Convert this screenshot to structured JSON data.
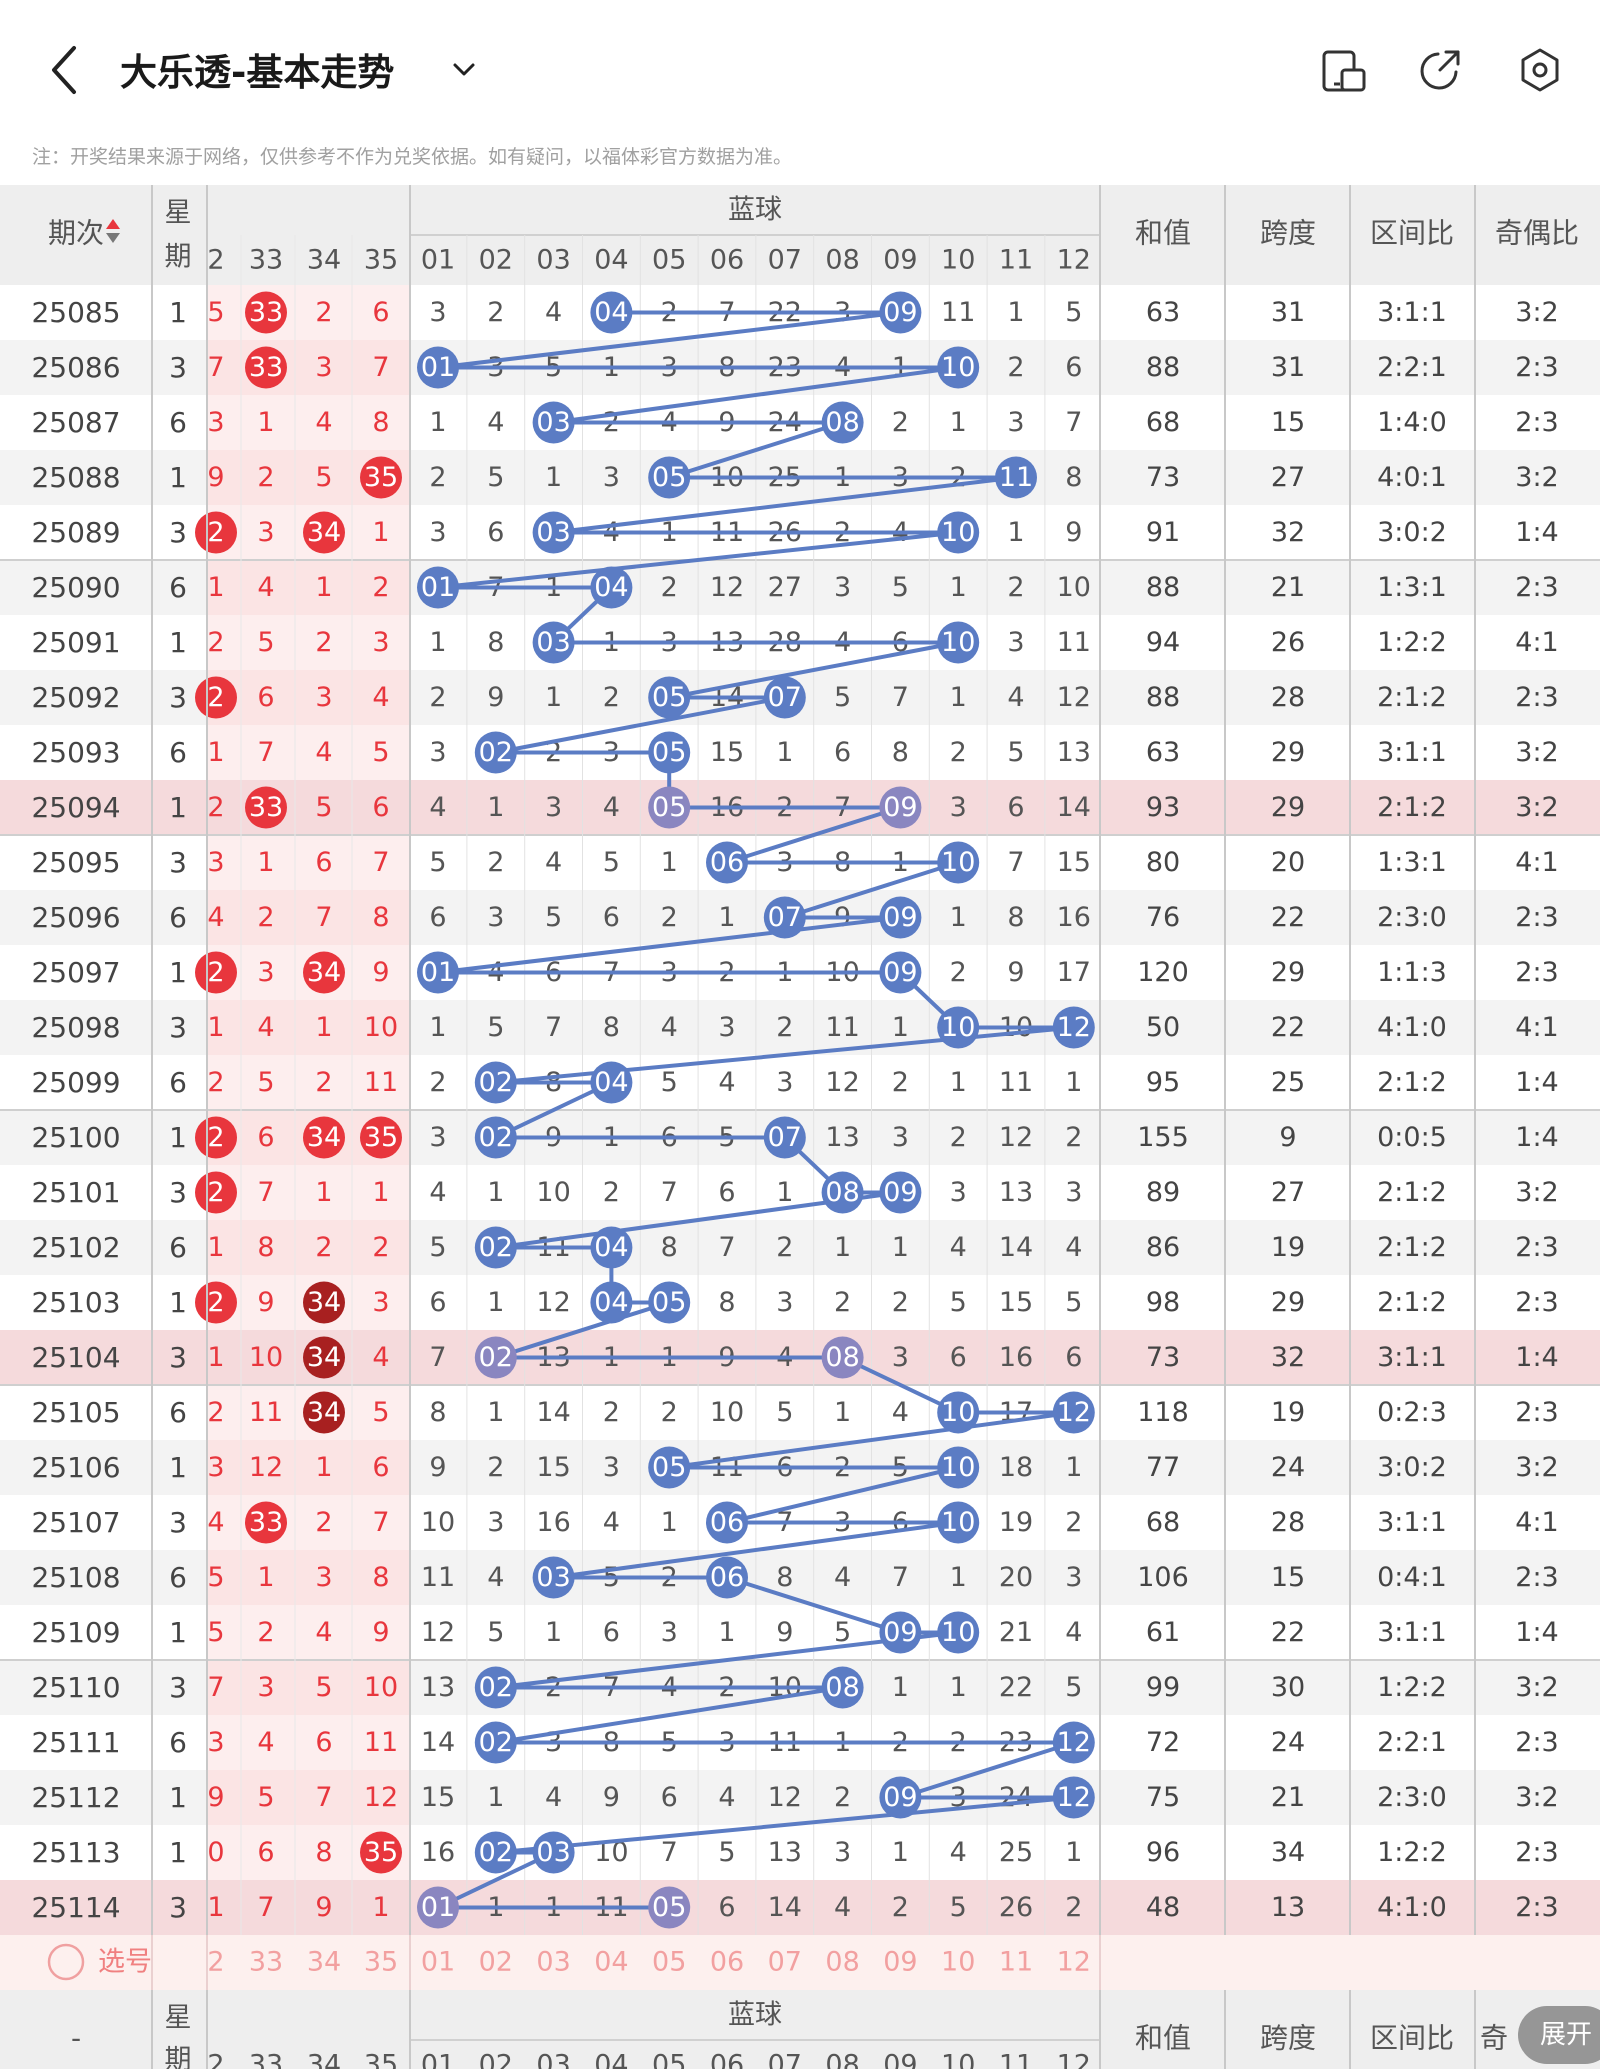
{
  "header": {
    "title": "大乐透-基本走势",
    "back_icon": "chevron-left-icon",
    "dropdown_icon": "chevron-down-icon",
    "icons": [
      "phone-layout-icon",
      "share-icon",
      "settings-hex-icon"
    ]
  },
  "note": "注：开奖结果来源于网络，仅供参考不作为兑奖依据。如有疑问，以福体彩官方数据为准。",
  "table": {
    "period_label": "期次",
    "weekday_label": [
      "星",
      "期"
    ],
    "blue_label": "蓝球",
    "red_partial_cols": [
      "2",
      "33",
      "34",
      "35"
    ],
    "blue_cols": [
      "01",
      "02",
      "03",
      "04",
      "05",
      "06",
      "07",
      "08",
      "09",
      "10",
      "11",
      "12"
    ],
    "stat_labels": [
      "和值",
      "跨度",
      "区间比",
      "奇偶比"
    ],
    "select_label": "选号",
    "footer_period": "-",
    "footer_stat_last": "奇",
    "rows": [
      {
        "p": "25085",
        "w": "1",
        "r": [
          "5",
          "33",
          "2",
          "6"
        ],
        "rh": [
          false,
          true,
          false,
          false
        ],
        "b": [
          "3",
          "2",
          "4",
          "04",
          "2",
          "7",
          "22",
          "3",
          "09",
          "11",
          "1",
          "5"
        ],
        "bh": [
          4,
          9
        ],
        "s": [
          "63",
          "31",
          "3:1:1",
          "3:2"
        ]
      },
      {
        "p": "25086",
        "w": "3",
        "r": [
          "7",
          "33",
          "3",
          "7"
        ],
        "rh": [
          false,
          true,
          false,
          false
        ],
        "b": [
          "01",
          "3",
          "5",
          "1",
          "3",
          "8",
          "23",
          "4",
          "1",
          "10",
          "2",
          "6"
        ],
        "bh": [
          1,
          10
        ],
        "s": [
          "88",
          "31",
          "2:2:1",
          "2:3"
        ]
      },
      {
        "p": "25087",
        "w": "6",
        "r": [
          "3",
          "1",
          "4",
          "8"
        ],
        "rh": [
          false,
          false,
          false,
          false
        ],
        "b": [
          "1",
          "4",
          "03",
          "2",
          "4",
          "9",
          "24",
          "08",
          "2",
          "1",
          "3",
          "7"
        ],
        "bh": [
          3,
          8
        ],
        "s": [
          "68",
          "15",
          "1:4:0",
          "2:3"
        ]
      },
      {
        "p": "25088",
        "w": "1",
        "r": [
          "9",
          "2",
          "5",
          "35"
        ],
        "rh": [
          false,
          false,
          false,
          true
        ],
        "b": [
          "2",
          "5",
          "1",
          "3",
          "05",
          "10",
          "25",
          "1",
          "3",
          "2",
          "11",
          "8"
        ],
        "bh": [
          5,
          11
        ],
        "s": [
          "73",
          "27",
          "4:0:1",
          "3:2"
        ]
      },
      {
        "p": "25089",
        "w": "3",
        "r": [
          "2",
          "3",
          "34",
          "1"
        ],
        "rh": [
          true,
          false,
          true,
          false
        ],
        "b": [
          "3",
          "6",
          "03",
          "4",
          "1",
          "11",
          "26",
          "2",
          "4",
          "10",
          "1",
          "9"
        ],
        "bh": [
          3,
          10
        ],
        "s": [
          "91",
          "32",
          "3:0:2",
          "1:4"
        ]
      },
      {
        "p": "25090",
        "w": "6",
        "r": [
          "1",
          "4",
          "1",
          "2"
        ],
        "rh": [
          false,
          false,
          false,
          false
        ],
        "b": [
          "01",
          "7",
          "1",
          "04",
          "2",
          "12",
          "27",
          "3",
          "5",
          "1",
          "2",
          "10"
        ],
        "bh": [
          1,
          4
        ],
        "s": [
          "88",
          "21",
          "1:3:1",
          "2:3"
        ]
      },
      {
        "p": "25091",
        "w": "1",
        "r": [
          "2",
          "5",
          "2",
          "3"
        ],
        "rh": [
          false,
          false,
          false,
          false
        ],
        "b": [
          "1",
          "8",
          "03",
          "1",
          "3",
          "13",
          "28",
          "4",
          "6",
          "10",
          "3",
          "11"
        ],
        "bh": [
          3,
          10
        ],
        "s": [
          "94",
          "26",
          "1:2:2",
          "4:1"
        ]
      },
      {
        "p": "25092",
        "w": "3",
        "r": [
          "2",
          "6",
          "3",
          "4"
        ],
        "rh": [
          true,
          false,
          false,
          false
        ],
        "b": [
          "2",
          "9",
          "1",
          "2",
          "05",
          "14",
          "07",
          "5",
          "7",
          "1",
          "4",
          "12"
        ],
        "bh": [
          5,
          7
        ],
        "s": [
          "88",
          "28",
          "2:1:2",
          "2:3"
        ]
      },
      {
        "p": "25093",
        "w": "6",
        "r": [
          "1",
          "7",
          "4",
          "5"
        ],
        "rh": [
          false,
          false,
          false,
          false
        ],
        "b": [
          "3",
          "02",
          "2",
          "3",
          "05",
          "15",
          "1",
          "6",
          "8",
          "2",
          "5",
          "13"
        ],
        "bh": [
          2,
          5
        ],
        "s": [
          "63",
          "29",
          "3:1:1",
          "3:2"
        ]
      },
      {
        "p": "25094",
        "w": "1",
        "r": [
          "2",
          "33",
          "5",
          "6"
        ],
        "rh": [
          false,
          true,
          false,
          false
        ],
        "b": [
          "4",
          "1",
          "3",
          "4",
          "05",
          "16",
          "2",
          "7",
          "09",
          "3",
          "6",
          "14"
        ],
        "bh": [
          5,
          9
        ],
        "s": [
          "93",
          "29",
          "2:1:2",
          "3:2"
        ],
        "hl": true
      },
      {
        "p": "25095",
        "w": "3",
        "r": [
          "3",
          "1",
          "6",
          "7"
        ],
        "rh": [
          false,
          false,
          false,
          false
        ],
        "b": [
          "5",
          "2",
          "4",
          "5",
          "1",
          "06",
          "3",
          "8",
          "1",
          "10",
          "7",
          "15"
        ],
        "bh": [
          6,
          10
        ],
        "s": [
          "80",
          "20",
          "1:3:1",
          "4:1"
        ]
      },
      {
        "p": "25096",
        "w": "6",
        "r": [
          "4",
          "2",
          "7",
          "8"
        ],
        "rh": [
          false,
          false,
          false,
          false
        ],
        "b": [
          "6",
          "3",
          "5",
          "6",
          "2",
          "1",
          "07",
          "9",
          "09",
          "1",
          "8",
          "16"
        ],
        "bh": [
          7,
          9
        ],
        "s": [
          "76",
          "22",
          "2:3:0",
          "2:3"
        ]
      },
      {
        "p": "25097",
        "w": "1",
        "r": [
          "2",
          "3",
          "34",
          "9"
        ],
        "rh": [
          true,
          false,
          true,
          false
        ],
        "b": [
          "01",
          "4",
          "6",
          "7",
          "3",
          "2",
          "1",
          "10",
          "09",
          "2",
          "9",
          "17"
        ],
        "bh": [
          1,
          9
        ],
        "s": [
          "120",
          "29",
          "1:1:3",
          "2:3"
        ]
      },
      {
        "p": "25098",
        "w": "3",
        "r": [
          "1",
          "4",
          "1",
          "10"
        ],
        "rh": [
          false,
          false,
          false,
          false
        ],
        "b": [
          "1",
          "5",
          "7",
          "8",
          "4",
          "3",
          "2",
          "11",
          "1",
          "10",
          "10",
          "12"
        ],
        "bh": [
          10,
          12
        ],
        "s": [
          "50",
          "22",
          "4:1:0",
          "4:1"
        ]
      },
      {
        "p": "25099",
        "w": "6",
        "r": [
          "2",
          "5",
          "2",
          "11"
        ],
        "rh": [
          false,
          false,
          false,
          false
        ],
        "b": [
          "2",
          "02",
          "8",
          "04",
          "5",
          "4",
          "3",
          "12",
          "2",
          "1",
          "11",
          "1"
        ],
        "bh": [
          2,
          4
        ],
        "s": [
          "95",
          "25",
          "2:1:2",
          "1:4"
        ]
      },
      {
        "p": "25100",
        "w": "1",
        "r": [
          "2",
          "6",
          "34",
          "35"
        ],
        "rh": [
          true,
          false,
          true,
          true
        ],
        "b": [
          "3",
          "02",
          "9",
          "1",
          "6",
          "5",
          "07",
          "13",
          "3",
          "2",
          "12",
          "2"
        ],
        "bh": [
          2,
          7
        ],
        "s": [
          "155",
          "9",
          "0:0:5",
          "1:4"
        ]
      },
      {
        "p": "25101",
        "w": "3",
        "r": [
          "2",
          "7",
          "1",
          "1"
        ],
        "rh": [
          true,
          false,
          false,
          false
        ],
        "b": [
          "4",
          "1",
          "10",
          "2",
          "7",
          "6",
          "1",
          "08",
          "09",
          "3",
          "13",
          "3"
        ],
        "bh": [
          8,
          9
        ],
        "s": [
          "89",
          "27",
          "2:1:2",
          "3:2"
        ]
      },
      {
        "p": "25102",
        "w": "6",
        "r": [
          "1",
          "8",
          "2",
          "2"
        ],
        "rh": [
          false,
          false,
          false,
          false
        ],
        "b": [
          "5",
          "02",
          "11",
          "04",
          "8",
          "7",
          "2",
          "1",
          "1",
          "4",
          "14",
          "4"
        ],
        "bh": [
          2,
          4
        ],
        "s": [
          "86",
          "19",
          "2:1:2",
          "2:3"
        ]
      },
      {
        "p": "25103",
        "w": "1",
        "r": [
          "2",
          "9",
          "34",
          "3"
        ],
        "rh": [
          true,
          false,
          true,
          false
        ],
        "b": [
          "6",
          "1",
          "12",
          "04",
          "05",
          "8",
          "3",
          "2",
          "2",
          "5",
          "15",
          "5"
        ],
        "bh": [
          4,
          5
        ],
        "s": [
          "98",
          "29",
          "2:1:2",
          "2:3"
        ],
        "dark34": true
      },
      {
        "p": "25104",
        "w": "3",
        "r": [
          "1",
          "10",
          "34",
          "4"
        ],
        "rh": [
          false,
          false,
          true,
          false
        ],
        "b": [
          "7",
          "02",
          "13",
          "1",
          "1",
          "9",
          "4",
          "08",
          "3",
          "6",
          "16",
          "6"
        ],
        "bh": [
          2,
          8
        ],
        "s": [
          "73",
          "32",
          "3:1:1",
          "1:4"
        ],
        "hl": true,
        "dark34": true
      },
      {
        "p": "25105",
        "w": "6",
        "r": [
          "2",
          "11",
          "34",
          "5"
        ],
        "rh": [
          false,
          false,
          true,
          false
        ],
        "b": [
          "8",
          "1",
          "14",
          "2",
          "2",
          "10",
          "5",
          "1",
          "4",
          "10",
          "17",
          "12"
        ],
        "bh": [
          10,
          12
        ],
        "s": [
          "118",
          "19",
          "0:2:3",
          "2:3"
        ],
        "dark34": true
      },
      {
        "p": "25106",
        "w": "1",
        "r": [
          "3",
          "12",
          "1",
          "6"
        ],
        "rh": [
          false,
          false,
          false,
          false
        ],
        "b": [
          "9",
          "2",
          "15",
          "3",
          "05",
          "11",
          "6",
          "2",
          "5",
          "10",
          "18",
          "1"
        ],
        "bh": [
          5,
          10
        ],
        "s": [
          "77",
          "24",
          "3:0:2",
          "3:2"
        ]
      },
      {
        "p": "25107",
        "w": "3",
        "r": [
          "4",
          "33",
          "2",
          "7"
        ],
        "rh": [
          false,
          true,
          false,
          false
        ],
        "b": [
          "10",
          "3",
          "16",
          "4",
          "1",
          "06",
          "7",
          "3",
          "6",
          "10",
          "19",
          "2"
        ],
        "bh": [
          6,
          10
        ],
        "s": [
          "68",
          "28",
          "3:1:1",
          "4:1"
        ]
      },
      {
        "p": "25108",
        "w": "6",
        "r": [
          "5",
          "1",
          "3",
          "8"
        ],
        "rh": [
          false,
          false,
          false,
          false
        ],
        "b": [
          "11",
          "4",
          "03",
          "5",
          "2",
          "06",
          "8",
          "4",
          "7",
          "1",
          "20",
          "3"
        ],
        "bh": [
          3,
          6
        ],
        "s": [
          "106",
          "15",
          "0:4:1",
          "2:3"
        ]
      },
      {
        "p": "25109",
        "w": "1",
        "r": [
          "5",
          "2",
          "4",
          "9"
        ],
        "rh": [
          false,
          false,
          false,
          false
        ],
        "b": [
          "12",
          "5",
          "1",
          "6",
          "3",
          "1",
          "9",
          "5",
          "09",
          "10",
          "21",
          "4"
        ],
        "bh": [
          9,
          10
        ],
        "s": [
          "61",
          "22",
          "3:1:1",
          "1:4"
        ]
      },
      {
        "p": "25110",
        "w": "3",
        "r": [
          "7",
          "3",
          "5",
          "10"
        ],
        "rh": [
          false,
          false,
          false,
          false
        ],
        "b": [
          "13",
          "02",
          "2",
          "7",
          "4",
          "2",
          "10",
          "08",
          "1",
          "1",
          "22",
          "5"
        ],
        "bh": [
          2,
          8
        ],
        "s": [
          "99",
          "30",
          "1:2:2",
          "3:2"
        ]
      },
      {
        "p": "25111",
        "w": "6",
        "r": [
          "3",
          "4",
          "6",
          "11"
        ],
        "rh": [
          false,
          false,
          false,
          false
        ],
        "b": [
          "14",
          "02",
          "3",
          "8",
          "5",
          "3",
          "11",
          "1",
          "2",
          "2",
          "23",
          "12"
        ],
        "bh": [
          2,
          12
        ],
        "s": [
          "72",
          "24",
          "2:2:1",
          "2:3"
        ]
      },
      {
        "p": "25112",
        "w": "1",
        "r": [
          "9",
          "5",
          "7",
          "12"
        ],
        "rh": [
          false,
          false,
          false,
          false
        ],
        "b": [
          "15",
          "1",
          "4",
          "9",
          "6",
          "4",
          "12",
          "2",
          "09",
          "3",
          "24",
          "12"
        ],
        "bh": [
          9,
          12
        ],
        "s": [
          "75",
          "21",
          "2:3:0",
          "3:2"
        ]
      },
      {
        "p": "25113",
        "w": "1",
        "r": [
          "0",
          "6",
          "8",
          "35"
        ],
        "rh": [
          false,
          false,
          false,
          true
        ],
        "b": [
          "16",
          "02",
          "03",
          "10",
          "7",
          "5",
          "13",
          "3",
          "1",
          "4",
          "25",
          "1"
        ],
        "bh": [
          2,
          3
        ],
        "s": [
          "96",
          "34",
          "1:2:2",
          "2:3"
        ]
      },
      {
        "p": "25114",
        "w": "3",
        "r": [
          "1",
          "7",
          "9",
          "1"
        ],
        "rh": [
          false,
          false,
          false,
          false
        ],
        "b": [
          "01",
          "1",
          "1",
          "11",
          "05",
          "6",
          "14",
          "4",
          "2",
          "5",
          "26",
          "2"
        ],
        "bh": [
          1,
          5
        ],
        "s": [
          "48",
          "13",
          "4:1:0",
          "2:3"
        ],
        "hl": true
      }
    ]
  },
  "fab_label": "展开",
  "colors": {
    "red_ball": "#e8363d",
    "dark_ball": "#a82020",
    "blue_ball": "#5b7cc4",
    "purple_ball": "#8a86c0",
    "line": "#5b7cc4",
    "highlight_row": "#f5dadc",
    "header_bg": "#eeeeee",
    "stripe": "#f3f3f3",
    "red_area": "#fdeeee"
  }
}
